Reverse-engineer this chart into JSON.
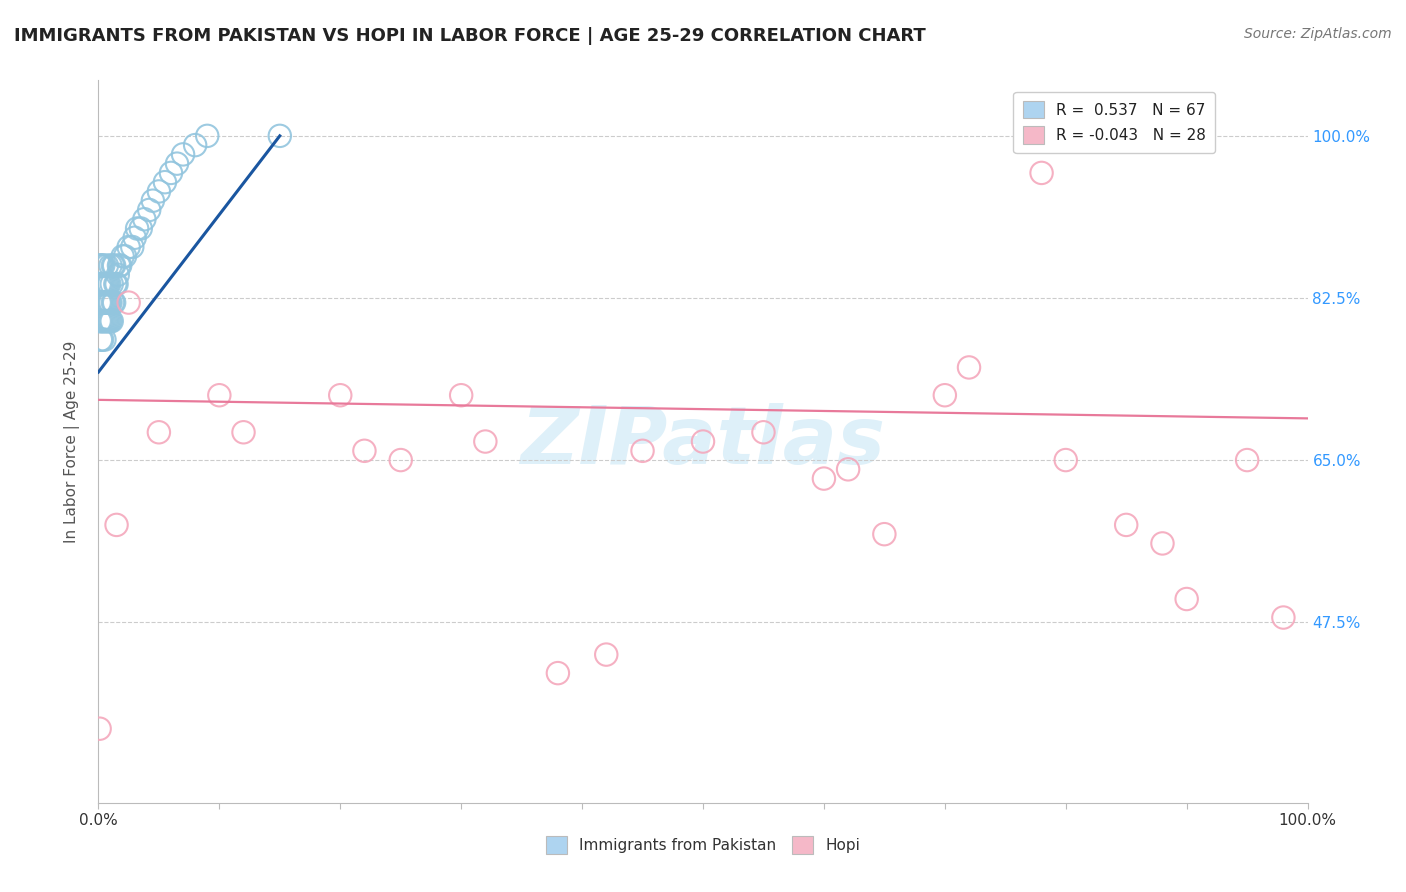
{
  "title": "IMMIGRANTS FROM PAKISTAN VS HOPI IN LABOR FORCE | AGE 25-29 CORRELATION CHART",
  "source": "Source: ZipAtlas.com",
  "ylabel": "In Labor Force | Age 25-29",
  "xlim": [
    0.0,
    1.0
  ],
  "ylim": [
    0.28,
    1.06
  ],
  "yticks": [
    0.475,
    0.65,
    0.825,
    1.0
  ],
  "ytick_labels": [
    "47.5%",
    "65.0%",
    "82.5%",
    "100.0%"
  ],
  "xtick_labels_left": "0.0%",
  "xtick_labels_right": "100.0%",
  "legend_r1": "R =  0.537",
  "legend_n1": "N = 67",
  "legend_r2": "R = -0.043",
  "legend_n2": "N = 28",
  "blue_scatter_x": [
    0.001,
    0.001,
    0.001,
    0.001,
    0.002,
    0.002,
    0.002,
    0.002,
    0.002,
    0.003,
    0.003,
    0.003,
    0.003,
    0.003,
    0.004,
    0.004,
    0.004,
    0.004,
    0.005,
    0.005,
    0.005,
    0.005,
    0.006,
    0.006,
    0.006,
    0.007,
    0.007,
    0.007,
    0.007,
    0.008,
    0.008,
    0.008,
    0.009,
    0.009,
    0.009,
    0.01,
    0.01,
    0.01,
    0.011,
    0.011,
    0.012,
    0.012,
    0.013,
    0.013,
    0.014,
    0.015,
    0.016,
    0.017,
    0.018,
    0.02,
    0.022,
    0.025,
    0.028,
    0.03,
    0.032,
    0.035,
    0.038,
    0.042,
    0.045,
    0.05,
    0.055,
    0.06,
    0.065,
    0.07,
    0.08,
    0.09,
    0.15
  ],
  "blue_scatter_y": [
    0.8,
    0.82,
    0.84,
    0.86,
    0.78,
    0.8,
    0.82,
    0.84,
    0.86,
    0.78,
    0.8,
    0.82,
    0.84,
    0.86,
    0.8,
    0.82,
    0.84,
    0.86,
    0.78,
    0.8,
    0.82,
    0.84,
    0.8,
    0.82,
    0.84,
    0.8,
    0.82,
    0.84,
    0.86,
    0.8,
    0.82,
    0.84,
    0.8,
    0.82,
    0.84,
    0.8,
    0.82,
    0.86,
    0.8,
    0.84,
    0.82,
    0.86,
    0.82,
    0.86,
    0.84,
    0.84,
    0.85,
    0.86,
    0.86,
    0.87,
    0.87,
    0.88,
    0.88,
    0.89,
    0.9,
    0.9,
    0.91,
    0.92,
    0.93,
    0.94,
    0.95,
    0.96,
    0.97,
    0.98,
    0.99,
    1.0,
    1.0
  ],
  "pink_scatter_x": [
    0.001,
    0.015,
    0.025,
    0.05,
    0.1,
    0.12,
    0.2,
    0.22,
    0.25,
    0.3,
    0.32,
    0.38,
    0.42,
    0.45,
    0.5,
    0.55,
    0.6,
    0.62,
    0.65,
    0.7,
    0.72,
    0.78,
    0.8,
    0.85,
    0.88,
    0.9,
    0.95,
    0.98
  ],
  "pink_scatter_y": [
    0.36,
    0.58,
    0.82,
    0.68,
    0.72,
    0.68,
    0.72,
    0.66,
    0.65,
    0.72,
    0.67,
    0.42,
    0.44,
    0.66,
    0.67,
    0.68,
    0.63,
    0.64,
    0.57,
    0.72,
    0.75,
    0.96,
    0.65,
    0.58,
    0.56,
    0.5,
    0.65,
    0.48
  ],
  "blue_line_x0": 0.0,
  "blue_line_x1": 0.15,
  "blue_line_y0": 0.745,
  "blue_line_y1": 1.0,
  "pink_line_x0": 0.0,
  "pink_line_x1": 1.0,
  "pink_line_y0": 0.715,
  "pink_line_y1": 0.695,
  "blue_scatter_color": "#92c5de",
  "pink_scatter_color": "#f4a8bc",
  "blue_line_color": "#1a56a0",
  "pink_line_color": "#e8799a",
  "legend_blue_fill": "#aed4f0",
  "legend_pink_fill": "#f5b8c8",
  "watermark_color": "#c8e6f5",
  "background_color": "#ffffff",
  "grid_color": "#cccccc",
  "title_color": "#222222",
  "axis_label_color": "#555555",
  "tick_color_right": "#3399ff",
  "watermark_text": "ZIPatlas"
}
